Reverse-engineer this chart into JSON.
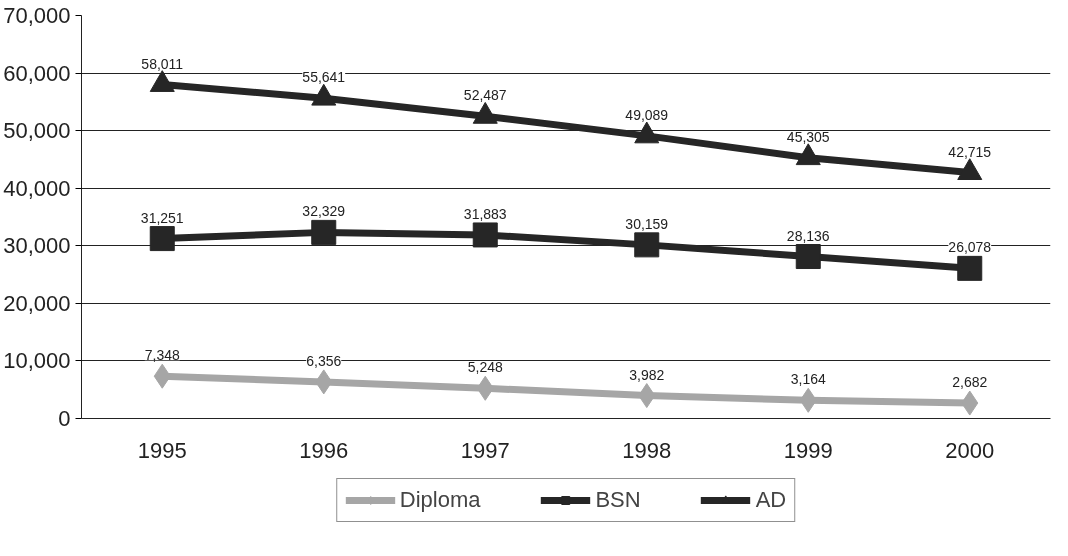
{
  "chart_data": {
    "type": "line",
    "categories": [
      "1995",
      "1996",
      "1997",
      "1998",
      "1999",
      "2000"
    ],
    "series": [
      {
        "name": "Diploma",
        "color": "#a6a6a6",
        "marker": "diamond",
        "values": [
          7348,
          6356,
          5248,
          3982,
          3164,
          2682
        ],
        "value_labels": [
          "7,348",
          "6,356",
          "5,248",
          "3,982",
          "3,164",
          "2,682"
        ]
      },
      {
        "name": "BSN",
        "color": "#262626",
        "marker": "square",
        "values": [
          31251,
          32329,
          31883,
          30159,
          28136,
          26078
        ],
        "value_labels": [
          "31,251",
          "32,329",
          "31,883",
          "30,159",
          "28,136",
          "26,078"
        ]
      },
      {
        "name": "AD",
        "color": "#262626",
        "marker": "triangle",
        "values": [
          58011,
          55641,
          52487,
          49089,
          45305,
          42715
        ],
        "value_labels": [
          "58,011",
          "55,641",
          "52,487",
          "49,089",
          "45,305",
          "42,715"
        ]
      }
    ],
    "ylim": [
      0,
      70000
    ],
    "yticks": [
      {
        "value": 0,
        "label": "0"
      },
      {
        "value": 10000,
        "label": "10,000"
      },
      {
        "value": 20000,
        "label": "20,000"
      },
      {
        "value": 30000,
        "label": "30,000"
      },
      {
        "value": 40000,
        "label": "40,000"
      },
      {
        "value": 50000,
        "label": "50,000"
      },
      {
        "value": 60000,
        "label": "60,000"
      },
      {
        "value": 70000,
        "label": "70,000"
      }
    ],
    "grid": "y",
    "legend": "bottom",
    "line_style": "solid"
  }
}
